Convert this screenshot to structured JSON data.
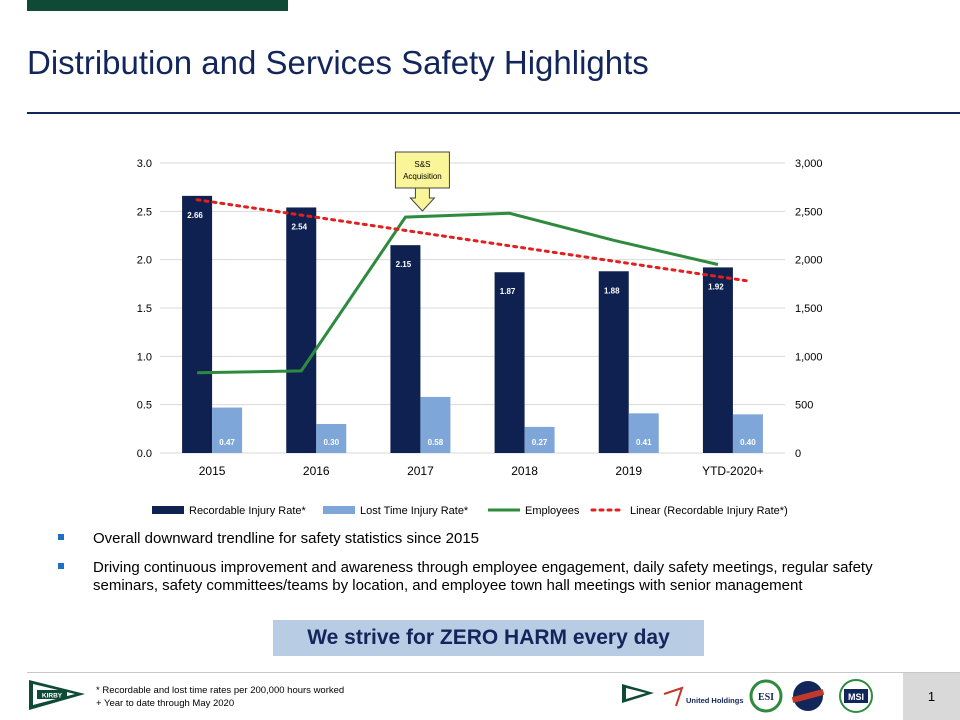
{
  "header": {
    "title": "Distribution and Services Safety Highlights"
  },
  "chart_data": {
    "type": "bar",
    "categories": [
      "2015",
      "2016",
      "2017",
      "2018",
      "2019",
      "YTD-2020+"
    ],
    "series": [
      {
        "name": "Recordable Injury Rate*",
        "kind": "bar",
        "axis": "left",
        "color": "#0f2150",
        "values": [
          2.66,
          2.54,
          2.15,
          1.87,
          1.88,
          1.92
        ]
      },
      {
        "name": "Lost Time Injury Rate*",
        "kind": "bar",
        "axis": "left",
        "color": "#7ea6d8",
        "values": [
          0.47,
          0.3,
          0.58,
          0.27,
          0.41,
          0.4
        ]
      },
      {
        "name": "Employees",
        "kind": "line",
        "axis": "right",
        "color": "#2e8b3e",
        "values": [
          830,
          850,
          2440,
          2480,
          2200,
          1950
        ]
      },
      {
        "name": "Linear (Recordable Injury Rate*)",
        "kind": "trendline",
        "axis": "left",
        "color": "#e02020",
        "values": [
          2.62,
          2.46,
          2.29,
          2.12,
          1.95,
          1.78
        ]
      }
    ],
    "data_labels": {
      "recordable": [
        "2.66",
        "2.54",
        "2.15",
        "1.87",
        "1.88",
        "1.92"
      ],
      "lost_time": [
        "0.47",
        "0.30",
        "0.58",
        "0.27",
        "0.41",
        "0.40"
      ]
    },
    "y_left": {
      "min": 0,
      "max": 3.0,
      "ticks": [
        "0.0",
        "0.5",
        "1.0",
        "1.5",
        "2.0",
        "2.5",
        "3.0"
      ]
    },
    "y_right": {
      "min": 0,
      "max": 3000,
      "ticks": [
        "0",
        "500",
        "1,000",
        "1,500",
        "2,000",
        "2,500",
        "3,000"
      ]
    },
    "annotation": {
      "line1": "S&S",
      "line2": "Acquisition",
      "category": "2017"
    },
    "legend_position": "bottom",
    "grid": true
  },
  "bullets": [
    "Overall downward trendline for safety statistics since 2015",
    "Driving continuous improvement and awareness through employee engagement, daily safety meetings, regular safety seminars, safety committees/teams by location, and employee town hall meetings with senior management"
  ],
  "banner": "We strive for ZERO HARM every day",
  "footnotes": [
    "* Recordable and lost time rates per 200,000 hours worked",
    "+ Year to date through May 2020"
  ],
  "logos": {
    "kirby": "KIRBY",
    "united": "United Holdings",
    "esi": "ESI",
    "msi": "MSI"
  },
  "page_number": "1",
  "colors": {
    "navy": "#12265c",
    "green": "#0f4a36",
    "banner_bg": "#b8cce4"
  }
}
